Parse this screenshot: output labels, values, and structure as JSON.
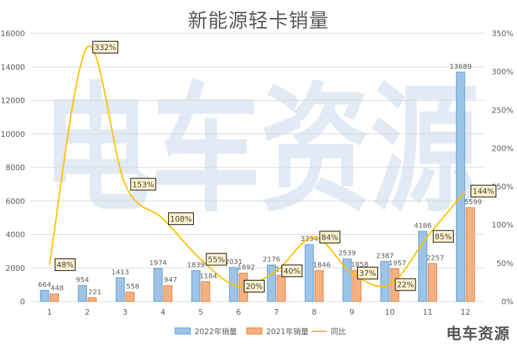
{
  "title": "新能源轻卡销量",
  "watermark": "电车资源",
  "brand": "电车资源",
  "colors": {
    "bar2022_fill": "#9dc3e6",
    "bar2022_stroke": "#5b9bd5",
    "bar2021_fill": "#f4b183",
    "bar2021_stroke": "#ed7d31",
    "line": "#ffc000",
    "label_box_fill": "#fff2cc",
    "label_box_stroke": "#000000",
    "grid": "#d9d9d9",
    "text": "#595959",
    "watermark": "#c9d9ec"
  },
  "chart_data": {
    "type": "bar",
    "title": "新能源轻卡销量",
    "categories": [
      "1",
      "2",
      "3",
      "4",
      "5",
      "6",
      "7",
      "8",
      "9",
      "10",
      "11",
      "12"
    ],
    "series": [
      {
        "name": "2022年销量",
        "axis": "left",
        "values": [
          664,
          954,
          1413,
          1974,
          1839,
          2031,
          2176,
          3394,
          2539,
          2387,
          4186,
          13689
        ]
      },
      {
        "name": "2021年销量",
        "axis": "left",
        "values": [
          448,
          221,
          558,
          947,
          1184,
          1692,
          1573,
          1846,
          1858,
          1957,
          2257,
          5599
        ]
      },
      {
        "name": "同比",
        "type": "line",
        "axis": "right",
        "smooth": true,
        "values": [
          48,
          332,
          153,
          108,
          55,
          20,
          40,
          84,
          37,
          22,
          85,
          144
        ],
        "labels": [
          "48%",
          "332%",
          "153%",
          "108%",
          "55%",
          "20%",
          "40%",
          "84%",
          "37%",
          "22%",
          "85%",
          "144%"
        ]
      }
    ],
    "ylim": [
      0,
      16000
    ],
    "yticks": [
      "0",
      "2000",
      "4000",
      "6000",
      "8000",
      "10000",
      "12000",
      "14000",
      "16000"
    ],
    "y2lim": [
      0,
      350
    ],
    "y2ticks": [
      "0%",
      "50%",
      "100%",
      "150%",
      "200%",
      "250%",
      "300%",
      "350%"
    ],
    "legend": "bottom",
    "legend_items": [
      "2022年销量",
      "2021年销量",
      "同比"
    ],
    "grid": true
  }
}
